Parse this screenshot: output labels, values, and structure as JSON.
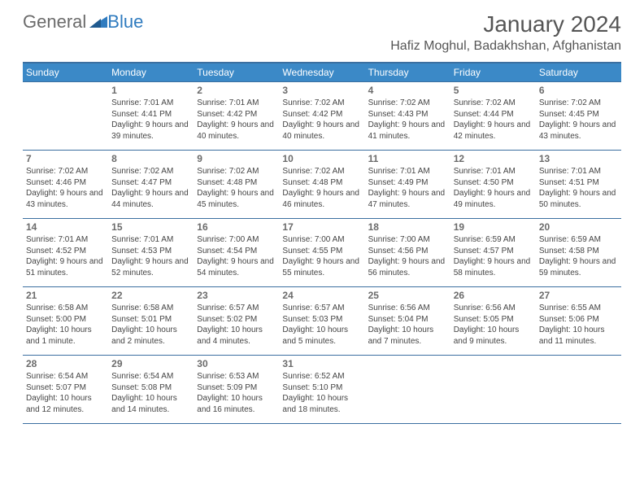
{
  "logo": {
    "part1": "General",
    "part2": "Blue"
  },
  "header": {
    "month": "January 2024",
    "location": "Hafiz Moghul, Badakhshan, Afghanistan"
  },
  "weekdays": [
    "Sunday",
    "Monday",
    "Tuesday",
    "Wednesday",
    "Thursday",
    "Friday",
    "Saturday"
  ],
  "colors": {
    "header_bg": "#3b89c7",
    "border": "#3b6fa0",
    "logo_gray": "#6b6b6b",
    "logo_blue": "#2f7bbf",
    "text": "#444444"
  },
  "weeks": [
    [
      null,
      {
        "n": "1",
        "sr": "7:01 AM",
        "ss": "4:41 PM",
        "dl": "9 hours and 39 minutes."
      },
      {
        "n": "2",
        "sr": "7:01 AM",
        "ss": "4:42 PM",
        "dl": "9 hours and 40 minutes."
      },
      {
        "n": "3",
        "sr": "7:02 AM",
        "ss": "4:42 PM",
        "dl": "9 hours and 40 minutes."
      },
      {
        "n": "4",
        "sr": "7:02 AM",
        "ss": "4:43 PM",
        "dl": "9 hours and 41 minutes."
      },
      {
        "n": "5",
        "sr": "7:02 AM",
        "ss": "4:44 PM",
        "dl": "9 hours and 42 minutes."
      },
      {
        "n": "6",
        "sr": "7:02 AM",
        "ss": "4:45 PM",
        "dl": "9 hours and 43 minutes."
      }
    ],
    [
      {
        "n": "7",
        "sr": "7:02 AM",
        "ss": "4:46 PM",
        "dl": "9 hours and 43 minutes."
      },
      {
        "n": "8",
        "sr": "7:02 AM",
        "ss": "4:47 PM",
        "dl": "9 hours and 44 minutes."
      },
      {
        "n": "9",
        "sr": "7:02 AM",
        "ss": "4:48 PM",
        "dl": "9 hours and 45 minutes."
      },
      {
        "n": "10",
        "sr": "7:02 AM",
        "ss": "4:48 PM",
        "dl": "9 hours and 46 minutes."
      },
      {
        "n": "11",
        "sr": "7:01 AM",
        "ss": "4:49 PM",
        "dl": "9 hours and 47 minutes."
      },
      {
        "n": "12",
        "sr": "7:01 AM",
        "ss": "4:50 PM",
        "dl": "9 hours and 49 minutes."
      },
      {
        "n": "13",
        "sr": "7:01 AM",
        "ss": "4:51 PM",
        "dl": "9 hours and 50 minutes."
      }
    ],
    [
      {
        "n": "14",
        "sr": "7:01 AM",
        "ss": "4:52 PM",
        "dl": "9 hours and 51 minutes."
      },
      {
        "n": "15",
        "sr": "7:01 AM",
        "ss": "4:53 PM",
        "dl": "9 hours and 52 minutes."
      },
      {
        "n": "16",
        "sr": "7:00 AM",
        "ss": "4:54 PM",
        "dl": "9 hours and 54 minutes."
      },
      {
        "n": "17",
        "sr": "7:00 AM",
        "ss": "4:55 PM",
        "dl": "9 hours and 55 minutes."
      },
      {
        "n": "18",
        "sr": "7:00 AM",
        "ss": "4:56 PM",
        "dl": "9 hours and 56 minutes."
      },
      {
        "n": "19",
        "sr": "6:59 AM",
        "ss": "4:57 PM",
        "dl": "9 hours and 58 minutes."
      },
      {
        "n": "20",
        "sr": "6:59 AM",
        "ss": "4:58 PM",
        "dl": "9 hours and 59 minutes."
      }
    ],
    [
      {
        "n": "21",
        "sr": "6:58 AM",
        "ss": "5:00 PM",
        "dl": "10 hours and 1 minute."
      },
      {
        "n": "22",
        "sr": "6:58 AM",
        "ss": "5:01 PM",
        "dl": "10 hours and 2 minutes."
      },
      {
        "n": "23",
        "sr": "6:57 AM",
        "ss": "5:02 PM",
        "dl": "10 hours and 4 minutes."
      },
      {
        "n": "24",
        "sr": "6:57 AM",
        "ss": "5:03 PM",
        "dl": "10 hours and 5 minutes."
      },
      {
        "n": "25",
        "sr": "6:56 AM",
        "ss": "5:04 PM",
        "dl": "10 hours and 7 minutes."
      },
      {
        "n": "26",
        "sr": "6:56 AM",
        "ss": "5:05 PM",
        "dl": "10 hours and 9 minutes."
      },
      {
        "n": "27",
        "sr": "6:55 AM",
        "ss": "5:06 PM",
        "dl": "10 hours and 11 minutes."
      }
    ],
    [
      {
        "n": "28",
        "sr": "6:54 AM",
        "ss": "5:07 PM",
        "dl": "10 hours and 12 minutes."
      },
      {
        "n": "29",
        "sr": "6:54 AM",
        "ss": "5:08 PM",
        "dl": "10 hours and 14 minutes."
      },
      {
        "n": "30",
        "sr": "6:53 AM",
        "ss": "5:09 PM",
        "dl": "10 hours and 16 minutes."
      },
      {
        "n": "31",
        "sr": "6:52 AM",
        "ss": "5:10 PM",
        "dl": "10 hours and 18 minutes."
      },
      null,
      null,
      null
    ]
  ],
  "labels": {
    "sunrise": "Sunrise: ",
    "sunset": "Sunset: ",
    "daylight": "Daylight: "
  }
}
